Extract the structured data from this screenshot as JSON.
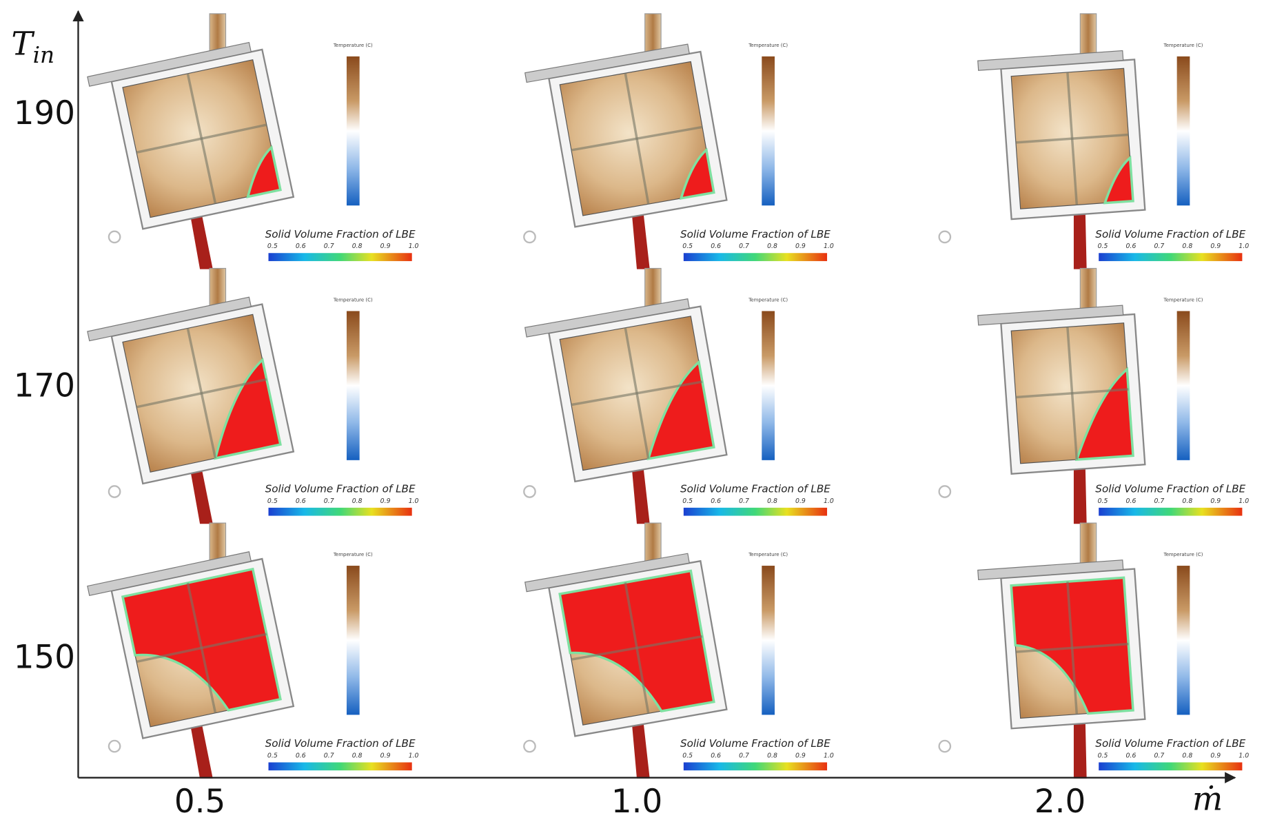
{
  "axes": {
    "y_label": "T",
    "y_subscript": "in",
    "x_label": "ṁ",
    "rows": [
      "190",
      "170",
      "150"
    ],
    "columns": [
      "0.5",
      "1.0",
      "2.0"
    ]
  },
  "colorbar": {
    "title": "Solid Volume Fraction of LBE",
    "ticks": [
      "0.5",
      "0.6",
      "0.7",
      "0.8",
      "0.9",
      "1.0"
    ],
    "temperature_title": "Temperature (C)"
  }
}
